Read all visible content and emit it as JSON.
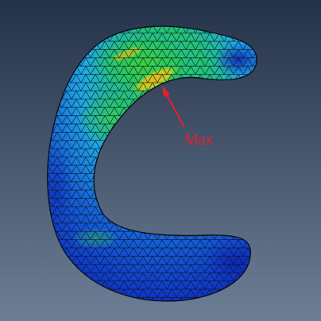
{
  "annotation": {
    "label": "Max",
    "color": "#e8202a"
  },
  "colors": {
    "background_top": "#243249",
    "background_bottom": "#6d7f96",
    "mesh_line": "#0b1020",
    "contour_low": "#0e2fc2",
    "contour_mid": "#1fa9e6",
    "contour_high": "#2cd34c",
    "contour_peak": "#f2b21a"
  }
}
